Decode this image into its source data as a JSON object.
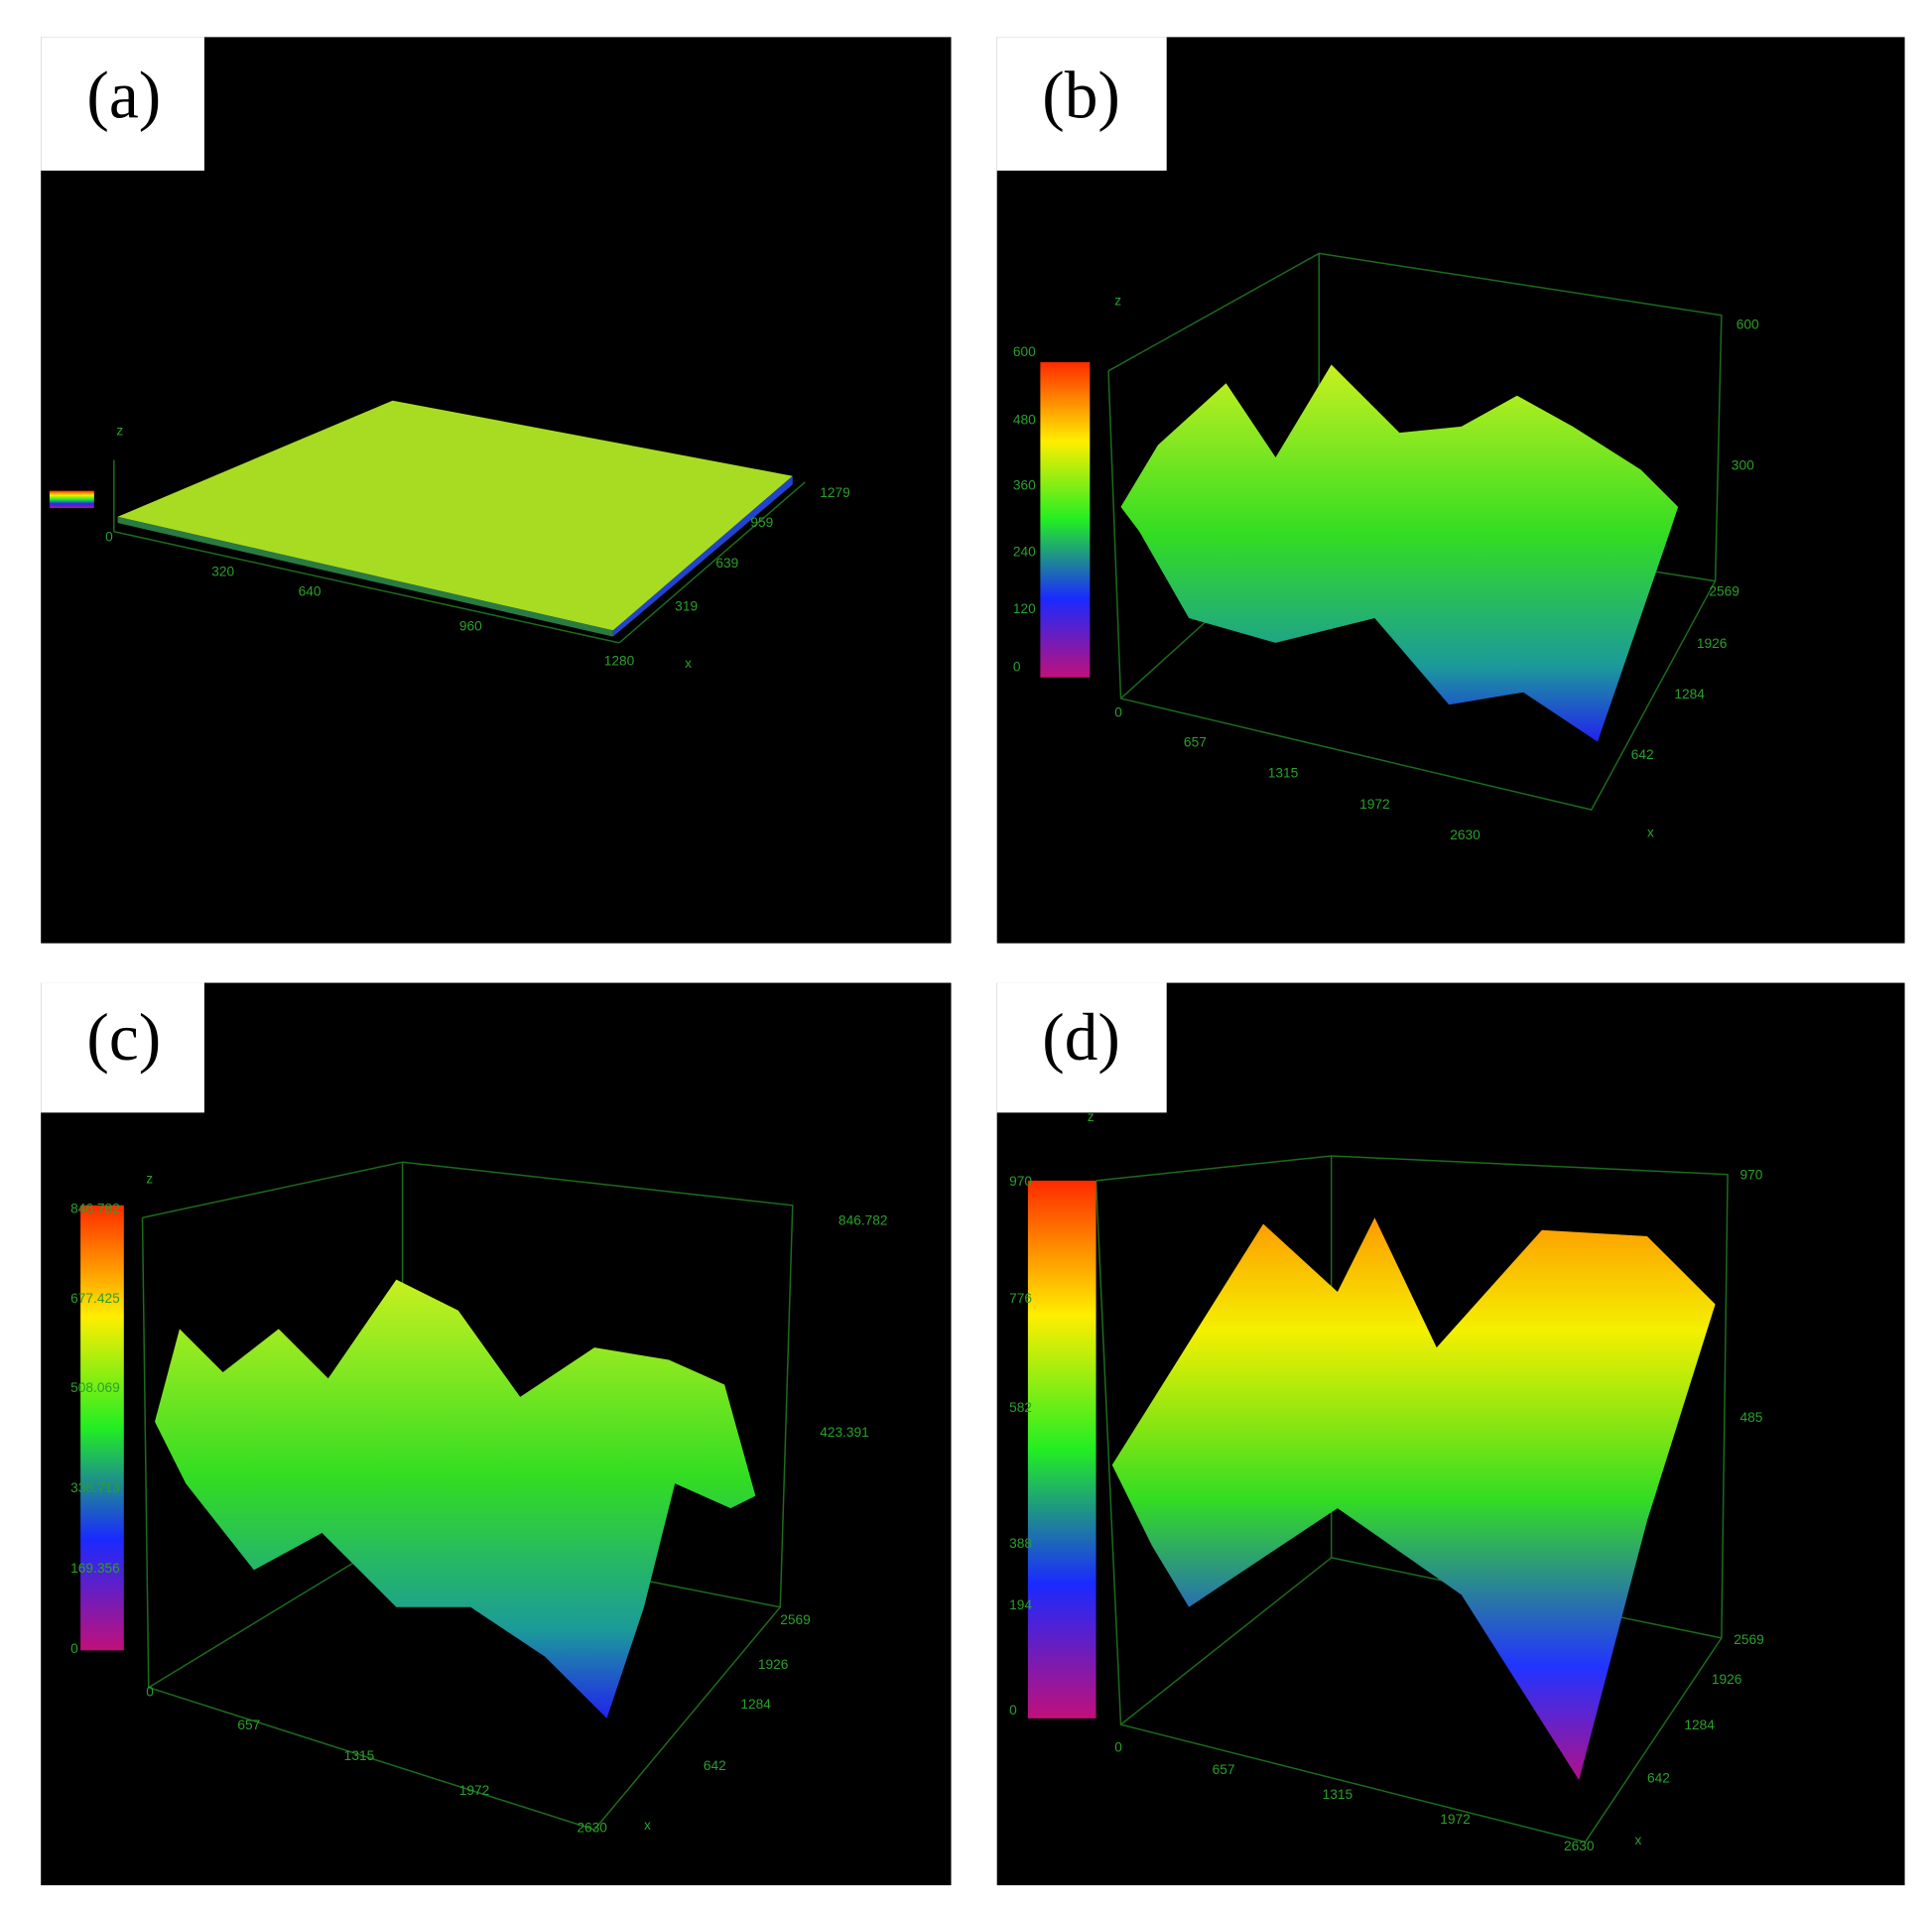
{
  "panels": [
    {
      "label": "(a)",
      "z_axis": "z",
      "x_axis": "x",
      "origin": "0",
      "x_ticks": [
        "320",
        "640",
        "960",
        "1280"
      ],
      "y_ticks": [
        "319",
        "639",
        "959",
        "1279"
      ]
    },
    {
      "label": "(b)",
      "z_axis": "z",
      "x_axis": "x",
      "colorbar": [
        "600",
        "480",
        "360",
        "240",
        "120",
        "0"
      ],
      "z_ticks": [
        "600",
        "300"
      ],
      "x_ticks": [
        "0",
        "657",
        "1315",
        "1972",
        "2630"
      ],
      "y_ticks": [
        "642",
        "1284",
        "1926",
        "2569"
      ]
    },
    {
      "label": "(c)",
      "z_axis": "z",
      "x_axis": "x",
      "colorbar": [
        "846.782",
        "677.425",
        "508.069",
        "338.713",
        "169.356",
        "0"
      ],
      "z_ticks": [
        "846.782",
        "423.391"
      ],
      "x_ticks": [
        "0",
        "657",
        "1315",
        "1972",
        "2630"
      ],
      "y_ticks": [
        "642",
        "1284",
        "1926",
        "2569"
      ]
    },
    {
      "label": "(d)",
      "z_axis": "z",
      "x_axis": "x",
      "colorbar": [
        "970",
        "776",
        "582",
        "388",
        "194",
        "0"
      ],
      "z_ticks": [
        "970",
        "485"
      ],
      "x_ticks": [
        "0",
        "657",
        "1315",
        "1972",
        "2630"
      ],
      "y_ticks": [
        "642",
        "1284",
        "1926",
        "2569"
      ]
    }
  ]
}
